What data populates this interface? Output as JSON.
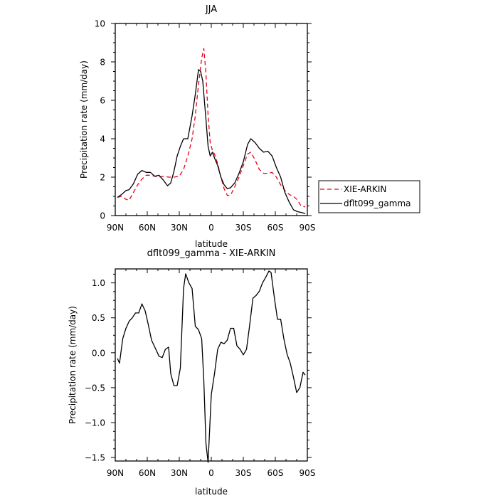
{
  "chart_data": [
    {
      "type": "line",
      "title": "JJA",
      "xlabel": "",
      "ylabel": "Precipitation rate (mm/day)",
      "xlim": [
        90,
        -90
      ],
      "ylim": [
        0,
        10
      ],
      "x_ticks": [
        90,
        60,
        30,
        0,
        -30,
        -60,
        -90
      ],
      "x_tick_labels": [
        "90N",
        "60N",
        "30N",
        "0",
        "30S",
        "60S",
        "90S"
      ],
      "y_ticks": [
        0,
        2,
        4,
        6,
        8,
        10
      ],
      "y_tick_labels": [
        "0",
        "2",
        "4",
        "6",
        "8",
        "10"
      ],
      "legend": "right",
      "series": [
        {
          "name": "XIE-ARKIN",
          "style": "dashed",
          "color": "#e8001c",
          "points": [
            [
              88,
              0.95
            ],
            [
              84,
              1.0
            ],
            [
              80,
              0.85
            ],
            [
              77,
              0.8
            ],
            [
              73,
              1.2
            ],
            [
              69,
              1.6
            ],
            [
              65,
              1.9
            ],
            [
              61,
              2.1
            ],
            [
              57,
              2.1
            ],
            [
              53,
              2.05
            ],
            [
              49,
              2.0
            ],
            [
              45,
              2.05
            ],
            [
              40,
              2.0
            ],
            [
              35,
              2.0
            ],
            [
              30,
              2.05
            ],
            [
              26,
              2.4
            ],
            [
              22,
              3.1
            ],
            [
              18,
              4.0
            ],
            [
              15,
              5.2
            ],
            [
              12,
              6.8
            ],
            [
              9,
              8.2
            ],
            [
              7,
              8.7
            ],
            [
              5,
              7.4
            ],
            [
              3,
              5.2
            ],
            [
              1,
              3.8
            ],
            [
              -1,
              3.4
            ],
            [
              -3,
              3.2
            ],
            [
              -6,
              2.7
            ],
            [
              -9,
              2.0
            ],
            [
              -12,
              1.4
            ],
            [
              -15,
              1.05
            ],
            [
              -18,
              1.05
            ],
            [
              -22,
              1.5
            ],
            [
              -26,
              2.0
            ],
            [
              -30,
              2.6
            ],
            [
              -34,
              3.2
            ],
            [
              -37,
              3.3
            ],
            [
              -41,
              2.9
            ],
            [
              -45,
              2.4
            ],
            [
              -49,
              2.2
            ],
            [
              -53,
              2.2
            ],
            [
              -57,
              2.25
            ],
            [
              -61,
              2.0
            ],
            [
              -65,
              1.6
            ],
            [
              -69,
              1.3
            ],
            [
              -73,
              1.1
            ],
            [
              -77,
              1.0
            ],
            [
              -81,
              0.8
            ],
            [
              -84,
              0.5
            ],
            [
              -88,
              0.45
            ]
          ]
        },
        {
          "name": "dflt099_gamma",
          "style": "solid",
          "color": "#000000",
          "points": [
            [
              88,
              0.95
            ],
            [
              84,
              1.1
            ],
            [
              80,
              1.3
            ],
            [
              77,
              1.35
            ],
            [
              73,
              1.65
            ],
            [
              69,
              2.15
            ],
            [
              65,
              2.35
            ],
            [
              61,
              2.25
            ],
            [
              57,
              2.25
            ],
            [
              53,
              2.05
            ],
            [
              49,
              2.1
            ],
            [
              45,
              1.85
            ],
            [
              41,
              1.55
            ],
            [
              38,
              1.7
            ],
            [
              35,
              2.3
            ],
            [
              32,
              3.1
            ],
            [
              29,
              3.6
            ],
            [
              26,
              4.0
            ],
            [
              22,
              4.0
            ],
            [
              18,
              5.2
            ],
            [
              15,
              6.3
            ],
            [
              12,
              7.6
            ],
            [
              10,
              7.5
            ],
            [
              8,
              7.0
            ],
            [
              5,
              5.0
            ],
            [
              3,
              3.6
            ],
            [
              1,
              3.1
            ],
            [
              -1,
              3.3
            ],
            [
              -3,
              3.0
            ],
            [
              -6,
              2.6
            ],
            [
              -9,
              2.0
            ],
            [
              -12,
              1.6
            ],
            [
              -15,
              1.4
            ],
            [
              -18,
              1.45
            ],
            [
              -22,
              1.7
            ],
            [
              -26,
              2.2
            ],
            [
              -30,
              2.8
            ],
            [
              -34,
              3.7
            ],
            [
              -37,
              4.0
            ],
            [
              -41,
              3.8
            ],
            [
              -45,
              3.5
            ],
            [
              -49,
              3.3
            ],
            [
              -53,
              3.35
            ],
            [
              -57,
              3.1
            ],
            [
              -61,
              2.5
            ],
            [
              -65,
              2.0
            ],
            [
              -69,
              1.2
            ],
            [
              -73,
              0.7
            ],
            [
              -77,
              0.3
            ],
            [
              -81,
              0.2
            ],
            [
              -85,
              0.15
            ],
            [
              -88,
              0.1
            ]
          ]
        }
      ]
    },
    {
      "type": "line",
      "title": "dflt099_gamma - XIE-ARKIN",
      "xlabel": "latitude",
      "ylabel": "Precipitation rate (mm/day)",
      "xlim": [
        90,
        -90
      ],
      "ylim": [
        -1.55,
        1.2
      ],
      "x_ticks": [
        90,
        60,
        30,
        0,
        -30,
        -60,
        -90
      ],
      "x_tick_labels": [
        "90N",
        "60N",
        "30N",
        "0",
        "30S",
        "60S",
        "90S"
      ],
      "y_ticks": [
        1.0,
        0.5,
        0.0,
        -0.5,
        -1.0,
        -1.5
      ],
      "y_tick_labels": [
        "1.0",
        "0.5",
        "0.0",
        "−0.5",
        "−1.0",
        "−1.5"
      ],
      "series": [
        {
          "color": "#000000",
          "style": "solid",
          "points": [
            [
              88,
              -0.08
            ],
            [
              86,
              -0.15
            ],
            [
              83,
              0.2
            ],
            [
              80,
              0.35
            ],
            [
              77,
              0.45
            ],
            [
              74,
              0.5
            ],
            [
              71,
              0.57
            ],
            [
              68,
              0.57
            ],
            [
              65,
              0.7
            ],
            [
              62,
              0.6
            ],
            [
              59,
              0.4
            ],
            [
              56,
              0.18
            ],
            [
              52,
              0.05
            ],
            [
              49,
              -0.05
            ],
            [
              46,
              -0.07
            ],
            [
              43,
              0.05
            ],
            [
              40,
              0.08
            ],
            [
              38,
              -0.3
            ],
            [
              35,
              -0.47
            ],
            [
              32,
              -0.47
            ],
            [
              29,
              -0.22
            ],
            [
              26,
              0.92
            ],
            [
              24,
              1.13
            ],
            [
              21,
              1.0
            ],
            [
              18,
              0.92
            ],
            [
              15,
              0.38
            ],
            [
              12,
              0.33
            ],
            [
              9,
              0.2
            ],
            [
              7,
              -0.4
            ],
            [
              5,
              -1.3
            ],
            [
              3,
              -1.57
            ],
            [
              0,
              -0.6
            ],
            [
              -3,
              -0.3
            ],
            [
              -6,
              0.05
            ],
            [
              -9,
              0.15
            ],
            [
              -12,
              0.13
            ],
            [
              -15,
              0.18
            ],
            [
              -18,
              0.35
            ],
            [
              -21,
              0.35
            ],
            [
              -24,
              0.1
            ],
            [
              -27,
              0.05
            ],
            [
              -30,
              -0.03
            ],
            [
              -33,
              0.05
            ],
            [
              -36,
              0.4
            ],
            [
              -39,
              0.78
            ],
            [
              -42,
              0.82
            ],
            [
              -45,
              0.88
            ],
            [
              -48,
              1.0
            ],
            [
              -51,
              1.08
            ],
            [
              -54,
              1.17
            ],
            [
              -56,
              1.15
            ],
            [
              -59,
              0.8
            ],
            [
              -62,
              0.48
            ],
            [
              -65,
              0.48
            ],
            [
              -68,
              0.2
            ],
            [
              -71,
              -0.02
            ],
            [
              -74,
              -0.15
            ],
            [
              -77,
              -0.35
            ],
            [
              -80,
              -0.57
            ],
            [
              -83,
              -0.5
            ],
            [
              -86,
              -0.28
            ],
            [
              -88,
              -0.32
            ]
          ]
        }
      ]
    }
  ]
}
